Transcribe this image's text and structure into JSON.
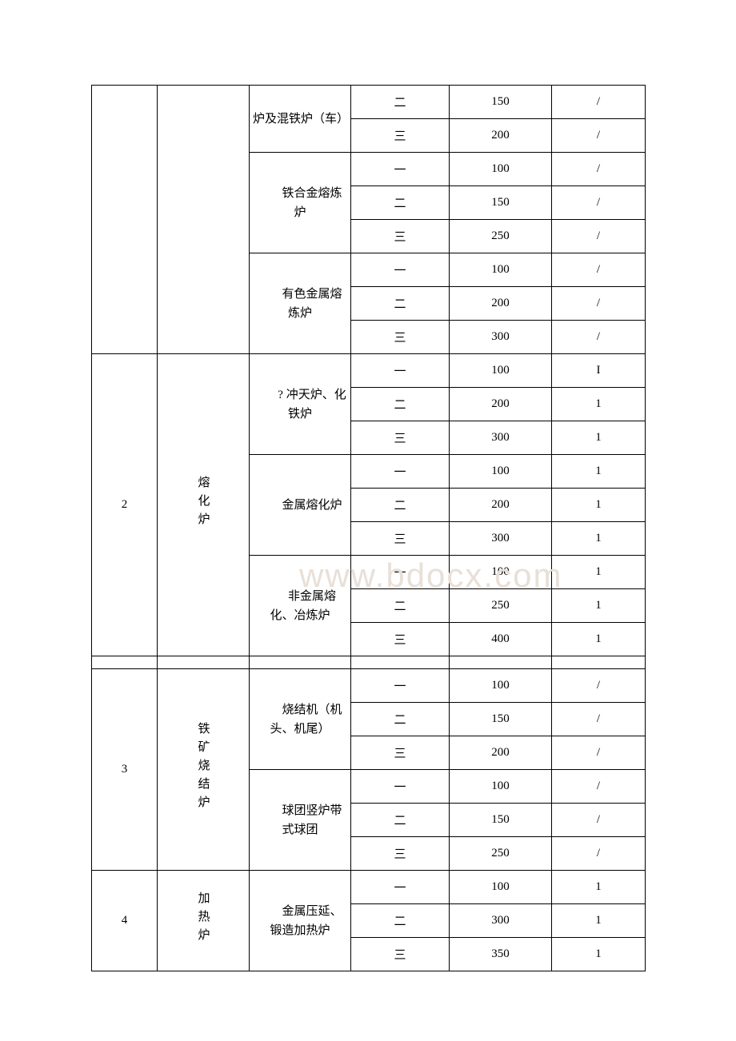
{
  "watermark": "www.bdocx.com",
  "table": {
    "columns": [
      "col1",
      "col2",
      "col3",
      "col4",
      "col5",
      "col6"
    ],
    "border_color": "#000000",
    "background_color": "#ffffff",
    "font_color": "#000000",
    "font_size": 15,
    "cell_padding": 10,
    "watermark_color": "#e8e0d8",
    "sections": [
      {
        "seq": "",
        "category": "",
        "groups": [
          {
            "name": "炉及混铁炉（车）",
            "rows": [
              {
                "level": "二",
                "val": "150",
                "note": "/"
              },
              {
                "level": "三",
                "val": "200",
                "note": "/"
              }
            ]
          },
          {
            "name": "　　铁合金熔炼炉",
            "rows": [
              {
                "level": "一",
                "val": "100",
                "note": "/"
              },
              {
                "level": "二",
                "val": "150",
                "note": "/"
              },
              {
                "level": "三",
                "val": "250",
                "note": "/"
              }
            ]
          },
          {
            "name": "　　有色金属熔炼炉",
            "rows": [
              {
                "level": "一",
                "val": "100",
                "note": "/"
              },
              {
                "level": "二",
                "val": "200",
                "note": "/"
              },
              {
                "level": "三",
                "val": "300",
                "note": "/"
              }
            ]
          }
        ]
      },
      {
        "seq": "2",
        "category": "熔化炉",
        "groups": [
          {
            "name": "　　? 冲天炉、化铁炉",
            "rows": [
              {
                "level": "一",
                "val": "100",
                "note": "I"
              },
              {
                "level": "二",
                "val": "200",
                "note": "1"
              },
              {
                "level": "三",
                "val": "300",
                "note": "1"
              }
            ]
          },
          {
            "name": "　　金属熔化炉",
            "rows": [
              {
                "level": "一",
                "val": "100",
                "note": "1"
              },
              {
                "level": "二",
                "val": "200",
                "note": "1"
              },
              {
                "level": "三",
                "val": "300",
                "note": "1"
              }
            ]
          },
          {
            "name": "　　非金属熔化、冶炼炉",
            "rows": [
              {
                "level": "一",
                "val": "100",
                "note": "1"
              },
              {
                "level": "二",
                "val": "250",
                "note": "1"
              },
              {
                "level": "三",
                "val": "400",
                "note": "1"
              }
            ]
          }
        ]
      },
      {
        "blank": true
      },
      {
        "seq": "3",
        "category": "铁矿烧结炉",
        "groups": [
          {
            "name": "　　烧结机（机头、机尾）",
            "rows": [
              {
                "level": "一",
                "val": "100",
                "note": "/"
              },
              {
                "level": "二",
                "val": "150",
                "note": "/"
              },
              {
                "level": "三",
                "val": "200",
                "note": "/"
              }
            ]
          },
          {
            "name": "　　球团竖炉带式球团",
            "rows": [
              {
                "level": "一",
                "val": "100",
                "note": "/"
              },
              {
                "level": "二",
                "val": "150",
                "note": "/"
              },
              {
                "level": "三",
                "val": "250",
                "note": "/"
              }
            ]
          }
        ]
      },
      {
        "seq": "4",
        "category": "加热炉",
        "groups": [
          {
            "name": "　　金属压延、锻造加热炉",
            "rows": [
              {
                "level": "一",
                "val": "100",
                "note": "1"
              },
              {
                "level": "二",
                "val": "300",
                "note": "1"
              },
              {
                "level": "三",
                "val": "350",
                "note": "1"
              }
            ]
          }
        ]
      }
    ]
  }
}
